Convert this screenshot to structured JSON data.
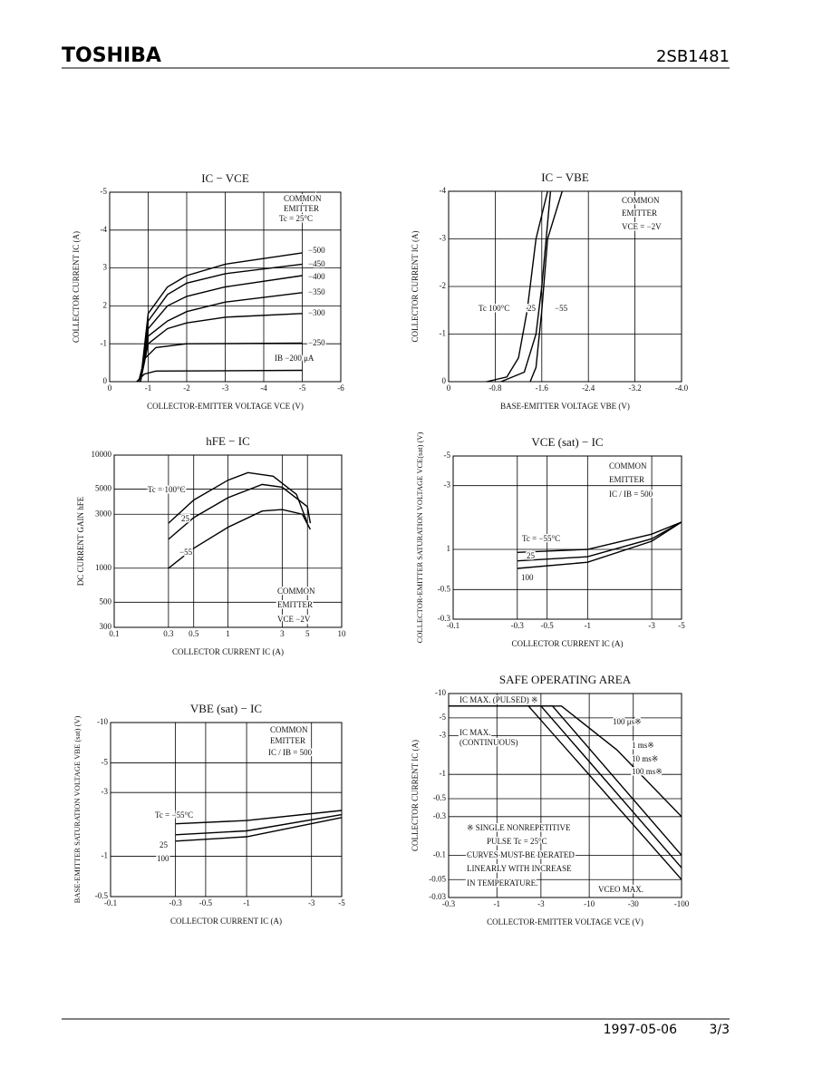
{
  "header": {
    "brand": "TOSHIBA",
    "part": "2SB1481"
  },
  "footer": {
    "date": "1997-05-06",
    "page": "3/3"
  },
  "charts": [
    {
      "type": "line",
      "title": "IC − VCE",
      "xlabel": "COLLECTOR-EMITTER VOLTAGE   VCE   (V)",
      "ylabel": "COLLECTOR CURRENT   IC   (A)",
      "xlim": [
        0,
        -6
      ],
      "ylim": [
        0,
        -5
      ],
      "xticks": [
        0,
        -1,
        -2,
        -3,
        -4,
        -5,
        -6
      ],
      "yticks": [
        0,
        -1,
        {
          "value": -2,
          "label": "2"
        },
        {
          "value": -3,
          "label": "3"
        },
        -4,
        -5
      ],
      "annotations": [
        "COMMON",
        "EMITTER",
        "Tc = 25°C"
      ],
      "series": [
        {
          "name": "−500",
          "x": [
            -0.8,
            -1,
            -1.5,
            -2,
            -3,
            -5
          ],
          "y": [
            0,
            -1.8,
            -2.5,
            -2.8,
            -3.1,
            -3.4
          ]
        },
        {
          "name": "−450",
          "x": [
            -0.8,
            -1,
            -1.5,
            -2,
            -3,
            -5
          ],
          "y": [
            0,
            -1.6,
            -2.3,
            -2.6,
            -2.85,
            -3.1
          ]
        },
        {
          "name": "−400",
          "x": [
            -0.8,
            -1,
            -1.5,
            -2,
            -3,
            -5
          ],
          "y": [
            0,
            -1.4,
            -2,
            -2.25,
            -2.5,
            -2.8
          ]
        },
        {
          "name": "−350",
          "x": [
            -0.8,
            -1,
            -1.5,
            -2,
            -3,
            -5
          ],
          "y": [
            0,
            -1.2,
            -1.6,
            -1.85,
            -2.1,
            -2.35
          ]
        },
        {
          "name": "−300",
          "x": [
            -0.8,
            -1,
            -1.5,
            -2,
            -3,
            -5
          ],
          "y": [
            0,
            -1,
            -1.4,
            -1.55,
            -1.7,
            -1.8
          ]
        },
        {
          "name": "−250",
          "x": [
            -0.75,
            -0.9,
            -1.2,
            -2,
            -5
          ],
          "y": [
            0,
            -0.6,
            -0.9,
            -1,
            -1.02
          ]
        },
        {
          "name": "IB   −200 μA",
          "x": [
            -0.7,
            -0.9,
            -1.2,
            -5
          ],
          "y": [
            0,
            -0.2,
            -0.28,
            -0.3
          ]
        }
      ]
    },
    {
      "type": "line",
      "title": "IC − VBE",
      "xlabel": "BASE-EMITTER VOLTAGE   VBE   (V)",
      "ylabel": "COLLECTOR CURRENT   IC   (A)",
      "xlim": [
        0,
        -4
      ],
      "ylim": [
        0,
        -4
      ],
      "xticks": [
        0,
        -0.8,
        -1.6,
        -2.4,
        -3.2,
        {
          "value": -4,
          "label": "-4.0"
        }
      ],
      "yticks": [
        0,
        -1,
        -2,
        -3,
        -4
      ],
      "annotations": [
        "COMMON",
        "EMITTER",
        "VCE = −2V"
      ],
      "series": [
        {
          "name": "Tc   100°C",
          "x": [
            -0.65,
            -1,
            -1.2,
            -1.35,
            -1.5,
            -1.7
          ],
          "y": [
            0,
            -0.1,
            -0.5,
            -1.5,
            -3,
            -4
          ]
        },
        {
          "name": "25",
          "x": [
            -0.9,
            -1.3,
            -1.5,
            -1.6,
            -1.75
          ],
          "y": [
            0,
            -0.2,
            -1,
            -2,
            -4
          ]
        },
        {
          "name": "−55",
          "x": [
            -1.4,
            -1.5,
            -1.6,
            -1.7,
            -1.95
          ],
          "y": [
            0,
            -0.3,
            -1.5,
            -3,
            -4
          ]
        }
      ]
    },
    {
      "type": "line",
      "title": "hFE − IC",
      "xlabel": "COLLECTOR CURRENT   IC   (A)",
      "ylabel": "DC CURRENT GAIN   hFE",
      "xlog": true,
      "ylog": true,
      "xlim": [
        0.1,
        10
      ],
      "ylim": [
        300,
        10000
      ],
      "xticks": [
        0.1,
        0.3,
        0.5,
        1,
        3,
        5,
        10
      ],
      "yticks": [
        300,
        500,
        1000,
        3000,
        5000,
        10000
      ],
      "annotations": [
        "COMMON",
        "EMITTER",
        "VCE   −2V"
      ],
      "series": [
        {
          "name": "Tc = 100°C",
          "x": [
            0.3,
            0.5,
            1,
            1.5,
            2.5,
            4,
            5
          ],
          "y": [
            2500,
            4000,
            6000,
            7000,
            6500,
            4500,
            2500
          ]
        },
        {
          "name": "25",
          "x": [
            0.3,
            0.5,
            1,
            2,
            3,
            5,
            5.3
          ],
          "y": [
            1800,
            2800,
            4200,
            5500,
            5200,
            3500,
            2500
          ]
        },
        {
          "name": "−55",
          "x": [
            0.3,
            0.5,
            1,
            2,
            3,
            4.5,
            5.3
          ],
          "y": [
            1000,
            1500,
            2300,
            3200,
            3300,
            3000,
            2200
          ]
        }
      ]
    },
    {
      "type": "line",
      "title": "VCE (sat) − IC",
      "xlabel": "COLLECTOR CURRENT   IC   (A)",
      "ylabel": "COLLECTOR-EMITTER SATURATION VOLTAGE   VCE(sat)   (V)",
      "xlog": true,
      "ylog": true,
      "xlim": [
        -0.1,
        -5
      ],
      "ylim": [
        -0.3,
        -5
      ],
      "xticks": [
        -0.1,
        -0.3,
        -0.5,
        -1,
        -3,
        -5
      ],
      "yticks": [
        -0.3,
        -0.5,
        {
          "value": -1,
          "label": "1"
        },
        -3,
        -5
      ],
      "annotations": [
        "COMMON",
        "EMITTER",
        "IC / IB = 500"
      ],
      "series": [
        {
          "name": "Tc = −55°C",
          "x": [
            -0.3,
            -1,
            -3,
            -5
          ],
          "y": [
            -0.95,
            -1,
            -1.3,
            -1.6
          ]
        },
        {
          "name": "25",
          "x": [
            -0.3,
            -1,
            -3,
            -5
          ],
          "y": [
            -0.82,
            -0.88,
            -1.2,
            -1.6
          ]
        },
        {
          "name": "100",
          "x": [
            -0.3,
            -1,
            -3,
            -5
          ],
          "y": [
            -0.72,
            -0.8,
            -1.15,
            -1.6
          ]
        }
      ]
    },
    {
      "type": "line",
      "title": "VBE (sat) − IC",
      "xlabel": "COLLECTOR CURRENT   IC   (A)",
      "ylabel": "BASE-EMITTER SATURATION VOLTAGE   VBE (sat)   (V)",
      "xlog": true,
      "ylog": true,
      "xlim": [
        -0.1,
        -5
      ],
      "ylim": [
        -0.5,
        -10
      ],
      "xticks": [
        -0.1,
        -0.3,
        -0.5,
        -1,
        -3,
        -5
      ],
      "yticks": [
        -0.5,
        -1,
        -3,
        -5,
        -10
      ],
      "annotations": [
        "COMMON",
        "EMITTER",
        "IC / IB = 500"
      ],
      "series": [
        {
          "name": "Tc = −55°C",
          "x": [
            -0.3,
            -1,
            -5
          ],
          "y": [
            -1.75,
            -1.85,
            -2.2
          ]
        },
        {
          "name": "25",
          "x": [
            -0.3,
            -1,
            -5
          ],
          "y": [
            -1.45,
            -1.55,
            -2.05
          ]
        },
        {
          "name": "100",
          "x": [
            -0.3,
            -1,
            -5
          ],
          "y": [
            -1.3,
            -1.4,
            -1.95
          ]
        }
      ]
    },
    {
      "type": "line",
      "title": "SAFE OPERATING AREA",
      "xlabel": "COLLECTOR-EMITTER VOLTAGE   VCE   (V)",
      "ylabel": "COLLECTOR CURRENT   IC   (A)",
      "xlog": true,
      "ylog": true,
      "xlim": [
        -0.3,
        -100
      ],
      "ylim": [
        -0.03,
        -10
      ],
      "xticks": [
        -0.3,
        -1,
        -3,
        -10,
        -30,
        -100
      ],
      "yticks": [
        -0.03,
        -0.05,
        -0.1,
        -0.3,
        -0.5,
        -1,
        -3,
        -5,
        -10
      ],
      "annotations": [
        "IC MAX. (PULSED) ※",
        "IC MAX.",
        "(CONTINUOUS)",
        "※   SINGLE NONREPETITIVE",
        "PULSE Tc = 25°C",
        "CURVES MUST BE DERATED",
        "LINEARLY WITH INCREASE",
        "IN TEMPERATURE.",
        "VCEO MAX."
      ],
      "series": [
        {
          "name": "100 μs※",
          "x": [
            -0.3,
            -5,
            -20,
            -100
          ],
          "y": [
            -7,
            -7,
            -2,
            -0.3
          ]
        },
        {
          "name": "1 ms※",
          "x": [
            -0.3,
            -4,
            -100
          ],
          "y": [
            -7,
            -7,
            -0.1
          ]
        },
        {
          "name": "10 ms※",
          "x": [
            -3,
            -100
          ],
          "y": [
            -7,
            -0.07
          ]
        },
        {
          "name": "100 ms※",
          "x": [
            -2.2,
            -100
          ],
          "y": [
            -7,
            -0.05
          ]
        }
      ]
    }
  ]
}
